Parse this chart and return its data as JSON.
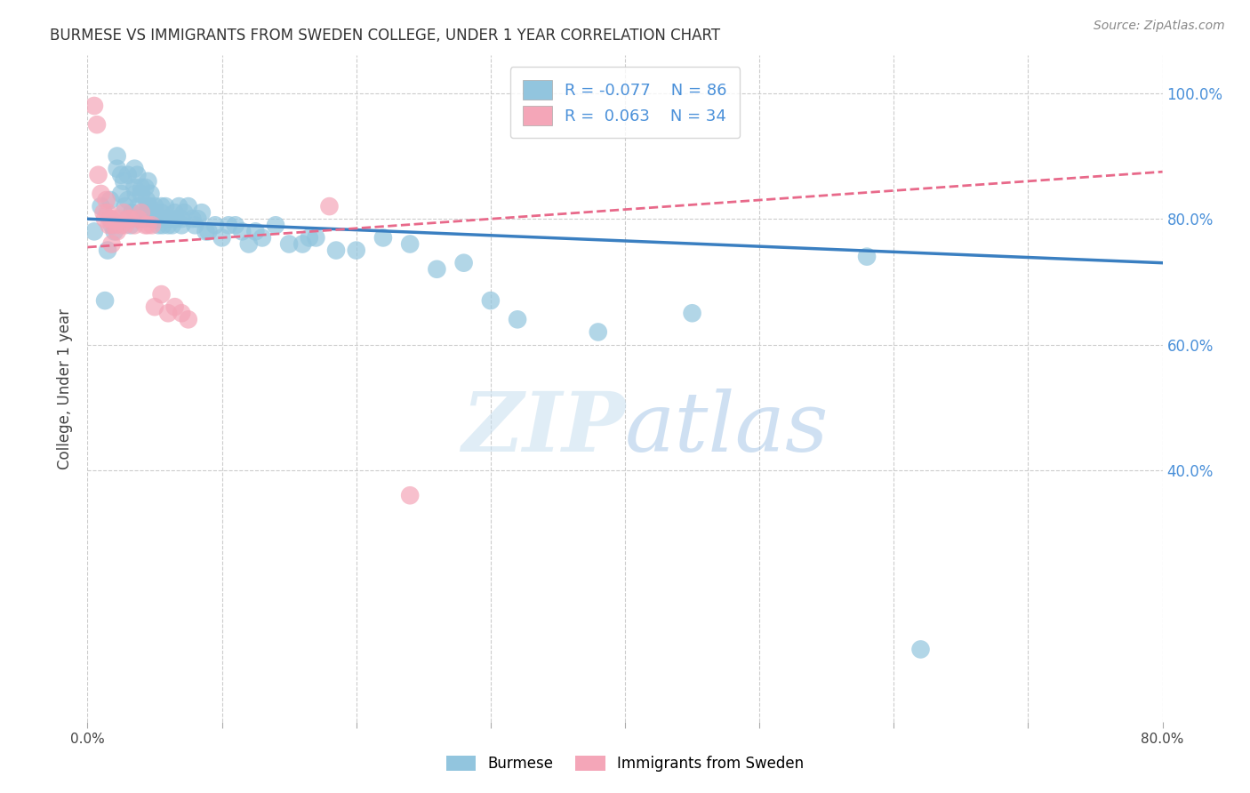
{
  "title": "BURMESE VS IMMIGRANTS FROM SWEDEN COLLEGE, UNDER 1 YEAR CORRELATION CHART",
  "source": "Source: ZipAtlas.com",
  "ylabel": "College, Under 1 year",
  "xlim": [
    0.0,
    0.8
  ],
  "ylim": [
    0.0,
    1.06
  ],
  "blue_R": "-0.077",
  "blue_N": "86",
  "pink_R": "0.063",
  "pink_N": "34",
  "blue_color": "#92c5de",
  "pink_color": "#f4a6b8",
  "blue_line_color": "#3a7fc1",
  "pink_line_color": "#e8698a",
  "background_color": "#ffffff",
  "grid_color": "#cccccc",
  "watermark_zip": "ZIP",
  "watermark_atlas": "atlas",
  "blue_trend_x0": 0.0,
  "blue_trend_y0": 0.8,
  "blue_trend_x1": 0.8,
  "blue_trend_y1": 0.73,
  "pink_trend_x0": 0.0,
  "pink_trend_y0": 0.755,
  "pink_trend_x1": 0.8,
  "pink_trend_y1": 0.875,
  "blue_scatter_x": [
    0.005,
    0.01,
    0.013,
    0.015,
    0.017,
    0.018,
    0.02,
    0.022,
    0.022,
    0.025,
    0.025,
    0.027,
    0.028,
    0.03,
    0.03,
    0.03,
    0.032,
    0.033,
    0.035,
    0.035,
    0.036,
    0.037,
    0.038,
    0.038,
    0.04,
    0.04,
    0.042,
    0.043,
    0.044,
    0.045,
    0.045,
    0.046,
    0.047,
    0.048,
    0.05,
    0.05,
    0.051,
    0.052,
    0.053,
    0.055,
    0.055,
    0.056,
    0.057,
    0.058,
    0.06,
    0.06,
    0.062,
    0.063,
    0.065,
    0.066,
    0.068,
    0.07,
    0.07,
    0.072,
    0.075,
    0.078,
    0.08,
    0.082,
    0.085,
    0.088,
    0.09,
    0.095,
    0.1,
    0.105,
    0.11,
    0.115,
    0.12,
    0.125,
    0.13,
    0.14,
    0.15,
    0.16,
    0.165,
    0.17,
    0.185,
    0.2,
    0.22,
    0.24,
    0.26,
    0.28,
    0.3,
    0.32,
    0.38,
    0.45,
    0.58,
    0.62
  ],
  "blue_scatter_y": [
    0.78,
    0.82,
    0.67,
    0.75,
    0.83,
    0.79,
    0.78,
    0.88,
    0.9,
    0.87,
    0.84,
    0.86,
    0.82,
    0.8,
    0.83,
    0.87,
    0.79,
    0.81,
    0.88,
    0.85,
    0.84,
    0.87,
    0.8,
    0.82,
    0.85,
    0.84,
    0.8,
    0.85,
    0.83,
    0.82,
    0.86,
    0.82,
    0.84,
    0.8,
    0.82,
    0.81,
    0.8,
    0.8,
    0.79,
    0.81,
    0.82,
    0.79,
    0.8,
    0.82,
    0.8,
    0.79,
    0.8,
    0.79,
    0.81,
    0.8,
    0.82,
    0.8,
    0.79,
    0.81,
    0.82,
    0.8,
    0.79,
    0.8,
    0.81,
    0.78,
    0.78,
    0.79,
    0.77,
    0.79,
    0.79,
    0.78,
    0.76,
    0.78,
    0.77,
    0.79,
    0.76,
    0.76,
    0.77,
    0.77,
    0.75,
    0.75,
    0.77,
    0.76,
    0.72,
    0.73,
    0.67,
    0.64,
    0.62,
    0.65,
    0.74,
    0.115
  ],
  "pink_scatter_x": [
    0.005,
    0.007,
    0.008,
    0.01,
    0.012,
    0.013,
    0.014,
    0.015,
    0.016,
    0.017,
    0.018,
    0.02,
    0.022,
    0.023,
    0.025,
    0.027,
    0.028,
    0.03,
    0.032,
    0.035,
    0.038,
    0.04,
    0.043,
    0.045,
    0.048,
    0.05,
    0.055,
    0.06,
    0.065,
    0.07,
    0.075,
    0.18,
    0.24,
    0.018
  ],
  "pink_scatter_y": [
    0.98,
    0.95,
    0.87,
    0.84,
    0.81,
    0.8,
    0.83,
    0.81,
    0.79,
    0.8,
    0.8,
    0.79,
    0.78,
    0.8,
    0.79,
    0.81,
    0.79,
    0.8,
    0.8,
    0.79,
    0.8,
    0.81,
    0.79,
    0.79,
    0.79,
    0.66,
    0.68,
    0.65,
    0.66,
    0.65,
    0.64,
    0.82,
    0.36,
    0.76
  ]
}
